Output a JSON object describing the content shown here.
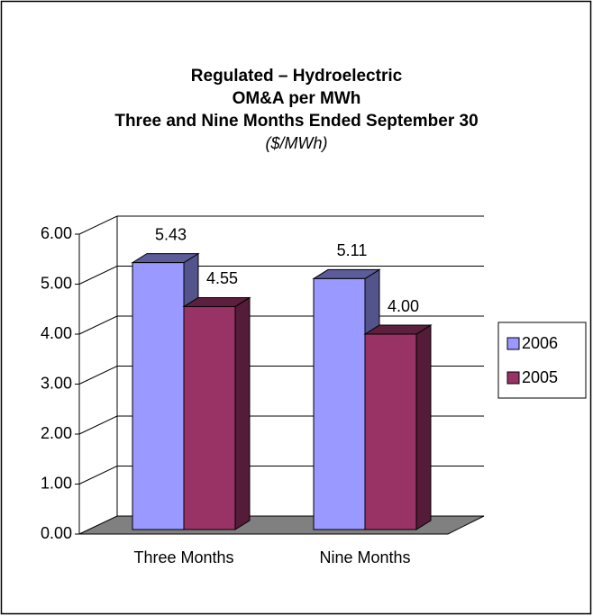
{
  "chart_data": {
    "type": "bar3d",
    "title": "Regulated  –  Hydroelectric",
    "title_line2": "OM&A per MWh",
    "title_line3": "Three and Nine Months Ended September 30",
    "subtitle": "($/MWh)",
    "categories": [
      "Three Months",
      "Nine Months"
    ],
    "series": [
      {
        "name": "2006",
        "color": "#9999ff",
        "values": [
          5.43,
          5.11
        ],
        "value_labels": [
          "5.43",
          "5.11"
        ]
      },
      {
        "name": "2005",
        "color": "#993366",
        "values": [
          4.55,
          4.0
        ],
        "value_labels": [
          "4.55",
          "4.00"
        ]
      }
    ],
    "ylim": [
      0,
      6
    ],
    "yticks": [
      {
        "value": 0,
        "label": "0.00"
      },
      {
        "value": 1,
        "label": "1.00"
      },
      {
        "value": 2,
        "label": "2.00"
      },
      {
        "value": 3,
        "label": "3.00"
      },
      {
        "value": 4,
        "label": "4.00"
      },
      {
        "value": 5,
        "label": "5.00"
      },
      {
        "value": 6,
        "label": "6.00"
      }
    ],
    "grid": true,
    "legend": "right"
  }
}
